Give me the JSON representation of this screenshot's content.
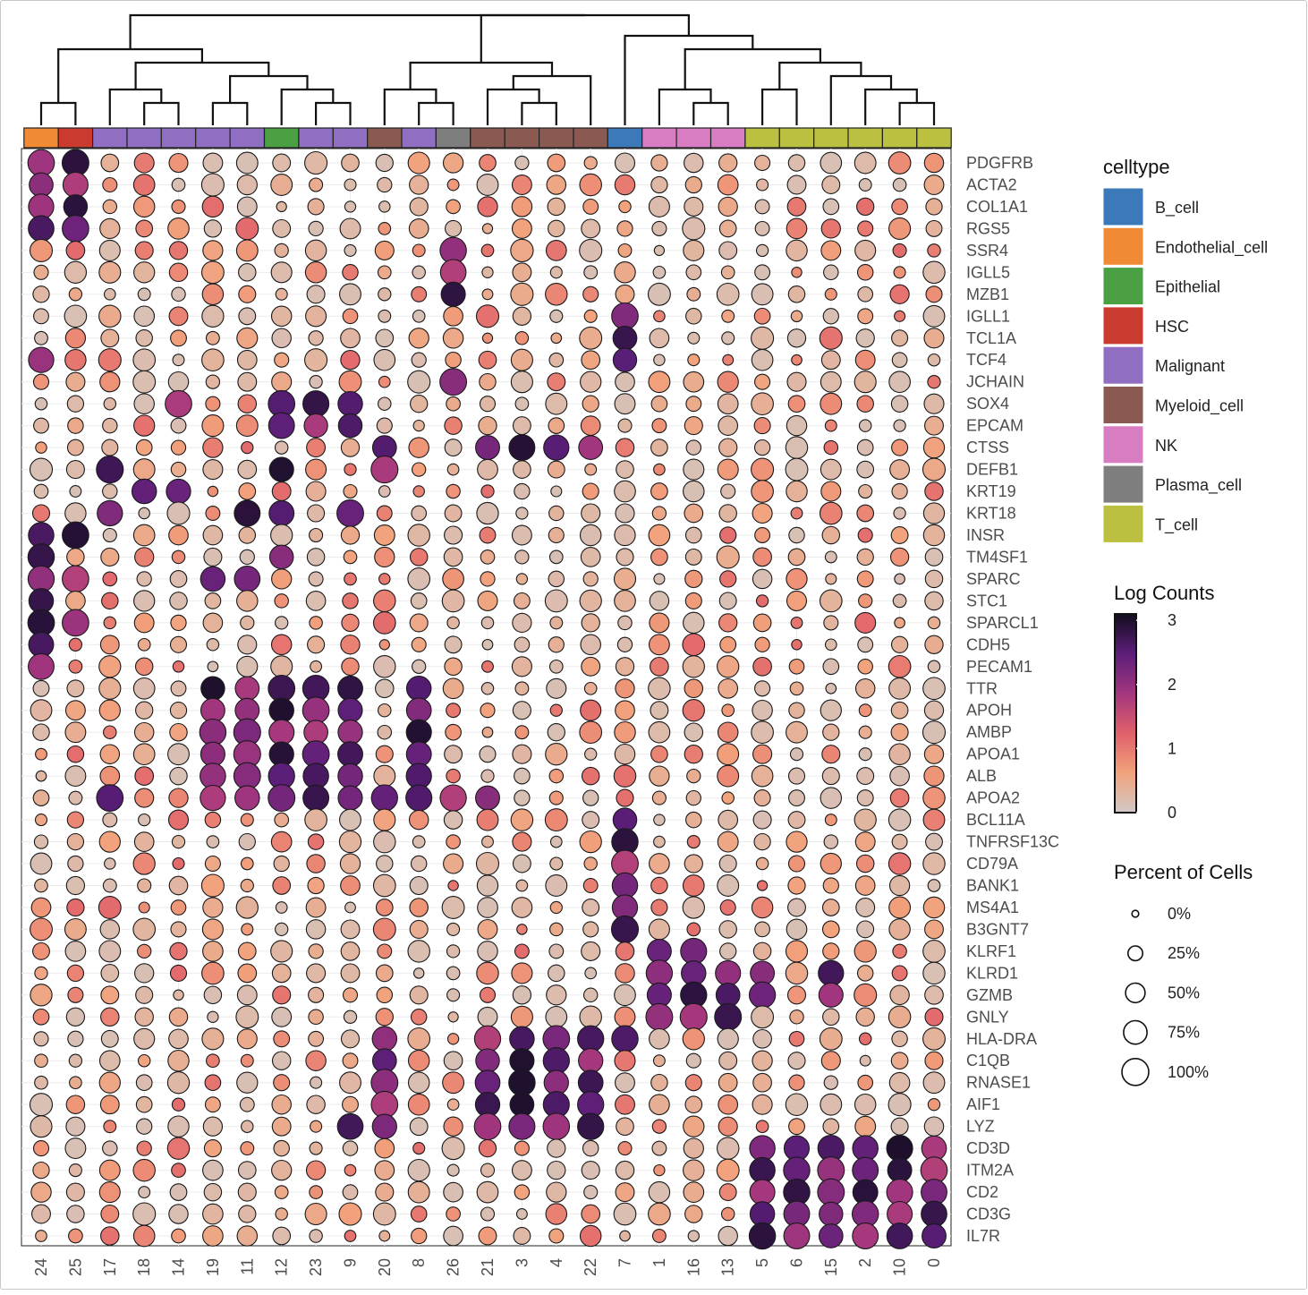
{
  "chart_data": {
    "type": "dotplot",
    "x_label": "cluster",
    "clusters": [
      "24",
      "25",
      "17",
      "18",
      "14",
      "19",
      "11",
      "12",
      "23",
      "9",
      "20",
      "8",
      "26",
      "21",
      "3",
      "4",
      "22",
      "7",
      "1",
      "16",
      "13",
      "5",
      "6",
      "15",
      "2",
      "10",
      "0"
    ],
    "celltypes": [
      "Endothelial_cell",
      "HSC",
      "Malignant",
      "Malignant",
      "Malignant",
      "Malignant",
      "Malignant",
      "Epithelial",
      "Malignant",
      "Malignant",
      "Myeloid_cell",
      "Malignant",
      "Plasma_cell",
      "Myeloid_cell",
      "Myeloid_cell",
      "Myeloid_cell",
      "Myeloid_cell",
      "B_cell",
      "NK",
      "NK",
      "NK",
      "T_cell",
      "T_cell",
      "T_cell",
      "T_cell",
      "T_cell",
      "T_cell"
    ],
    "genes": [
      "PDGFRB",
      "ACTA2",
      "COL1A1",
      "RGS5",
      "SSR4",
      "IGLL5",
      "MZB1",
      "IGLL1",
      "TCL1A",
      "TCF4",
      "JCHAIN",
      "SOX4",
      "EPCAM",
      "CTSS",
      "DEFB1",
      "KRT19",
      "KRT18",
      "INSR",
      "TM4SF1",
      "SPARC",
      "STC1",
      "SPARCL1",
      "CDH5",
      "PECAM1",
      "TTR",
      "APOH",
      "AMBP",
      "APOA1",
      "ALB",
      "APOA2",
      "BCL11A",
      "TNFRSF13C",
      "CD79A",
      "BANK1",
      "MS4A1",
      "B3GNT7",
      "KLRF1",
      "KLRD1",
      "GZMB",
      "GNLY",
      "HLA-DRA",
      "C1QB",
      "RNASE1",
      "AIF1",
      "LYZ",
      "CD3D",
      "ITM2A",
      "CD2",
      "CD3G",
      "IL7R"
    ],
    "gene_markers": {
      "PDGFRB": [
        24,
        25
      ],
      "ACTA2": [
        24,
        25
      ],
      "COL1A1": [
        24,
        25
      ],
      "RGS5": [
        24,
        25
      ],
      "SSR4": [
        26
      ],
      "IGLL5": [
        26
      ],
      "MZB1": [
        26
      ],
      "IGLL1": [
        7
      ],
      "TCL1A": [
        7
      ],
      "TCF4": [
        24,
        7
      ],
      "JCHAIN": [
        26
      ],
      "SOX4": [
        12,
        23,
        9,
        14
      ],
      "EPCAM": [
        12,
        23,
        9
      ],
      "CTSS": [
        20,
        21,
        3,
        4,
        22
      ],
      "DEFB1": [
        17,
        12,
        20
      ],
      "KRT19": [
        18,
        14
      ],
      "KRT18": [
        12,
        17,
        11,
        9
      ],
      "INSR": [
        24,
        25
      ],
      "TM4SF1": [
        24,
        12
      ],
      "SPARC": [
        24,
        25,
        19,
        11
      ],
      "STC1": [
        24
      ],
      "SPARCL1": [
        24,
        25
      ],
      "CDH5": [
        24
      ],
      "PECAM1": [
        24
      ],
      "TTR": [
        19,
        11,
        12,
        23,
        9,
        8
      ],
      "APOH": [
        19,
        11,
        12,
        23,
        9,
        8
      ],
      "AMBP": [
        19,
        11,
        12,
        23,
        9,
        8
      ],
      "APOA1": [
        19,
        11,
        12,
        23,
        9,
        8
      ],
      "ALB": [
        19,
        11,
        12,
        23,
        9,
        8
      ],
      "APOA2": [
        17,
        19,
        11,
        12,
        23,
        9,
        20,
        8,
        26,
        21
      ],
      "BCL11A": [
        7
      ],
      "TNFRSF13C": [
        7
      ],
      "CD79A": [
        7
      ],
      "BANK1": [
        7
      ],
      "MS4A1": [
        7
      ],
      "B3GNT7": [
        7
      ],
      "KLRF1": [
        1,
        16
      ],
      "KLRD1": [
        1,
        16,
        13,
        5,
        15
      ],
      "GZMB": [
        1,
        16,
        13,
        5,
        15
      ],
      "GNLY": [
        1,
        16,
        13
      ],
      "HLA-DRA": [
        20,
        21,
        3,
        4,
        22,
        7
      ],
      "C1QB": [
        20,
        21,
        3,
        4,
        22
      ],
      "RNASE1": [
        20,
        21,
        3,
        4,
        22
      ],
      "AIF1": [
        20,
        21,
        3,
        4,
        22
      ],
      "LYZ": [
        20,
        21,
        3,
        4,
        22,
        9
      ],
      "CD3D": [
        5,
        6,
        15,
        2,
        10,
        0
      ],
      "ITM2A": [
        5,
        6,
        15,
        2,
        10,
        0
      ],
      "CD2": [
        5,
        6,
        15,
        2,
        10,
        0
      ],
      "CD3G": [
        5,
        6,
        15,
        2,
        10,
        0
      ],
      "IL7R": [
        5,
        6,
        15,
        2,
        10,
        0
      ]
    },
    "color_legend": {
      "title": "Log Counts",
      "ticks": [
        "3",
        "2",
        "1",
        "0"
      ],
      "range": [
        0,
        3.1
      ],
      "stops": [
        "#d0c9c6",
        "#f2a27c",
        "#e0606a",
        "#a3367e",
        "#5b1e79",
        "#120d1e"
      ]
    },
    "size_legend": {
      "title": "Percent of Cells",
      "labels": [
        "0%",
        "25%",
        "50%",
        "75%",
        "100%"
      ],
      "values": [
        0,
        25,
        50,
        75,
        100
      ]
    },
    "celltype_legend": {
      "title": "celltype",
      "items": [
        {
          "label": "B_cell",
          "color": "#3b79b8"
        },
        {
          "label": "Endothelial_cell",
          "color": "#f08a35"
        },
        {
          "label": "Epithelial",
          "color": "#4aa043"
        },
        {
          "label": "HSC",
          "color": "#cb3a2f"
        },
        {
          "label": "Malignant",
          "color": "#906ec2"
        },
        {
          "label": "Myeloid_cell",
          "color": "#8a5a52"
        },
        {
          "label": "NK",
          "color": "#d97dc2"
        },
        {
          "label": "Plasma_cell",
          "color": "#7e7e7e"
        },
        {
          "label": "T_cell",
          "color": "#bcc040"
        }
      ]
    },
    "dendrogram_merges": [
      [
        "24",
        "25"
      ],
      [
        "18",
        "14"
      ],
      [
        "19",
        "11"
      ],
      [
        "23",
        "9"
      ],
      [
        "8",
        "26"
      ],
      [
        "3",
        "4"
      ],
      [
        "16",
        "13"
      ],
      [
        "10",
        "0"
      ],
      [
        "17",
        "18-14"
      ],
      [
        "12",
        "23-9"
      ],
      [
        "21",
        "3-4"
      ],
      [
        "5",
        "6"
      ],
      [
        "2",
        "10-0"
      ],
      [
        "20",
        "8-26"
      ],
      [
        "1",
        "16-13"
      ],
      [
        "15",
        "2-10-0"
      ],
      [
        "19-11",
        "12-23-9"
      ],
      [
        "21-3-4",
        "22"
      ],
      [
        "5-6",
        "15-2-10-0"
      ],
      [
        "17-18-14",
        "19-11-12-23-9"
      ],
      [
        "1-16-13",
        "5-6-15-2-10-0"
      ],
      [
        "20-8-26",
        "21-3-4-22"
      ],
      [
        "24-25",
        "17..9"
      ],
      [
        "7",
        "1..0"
      ],
      [
        "20..22",
        "7..0"
      ],
      [
        "24..9",
        "20..0"
      ]
    ]
  }
}
